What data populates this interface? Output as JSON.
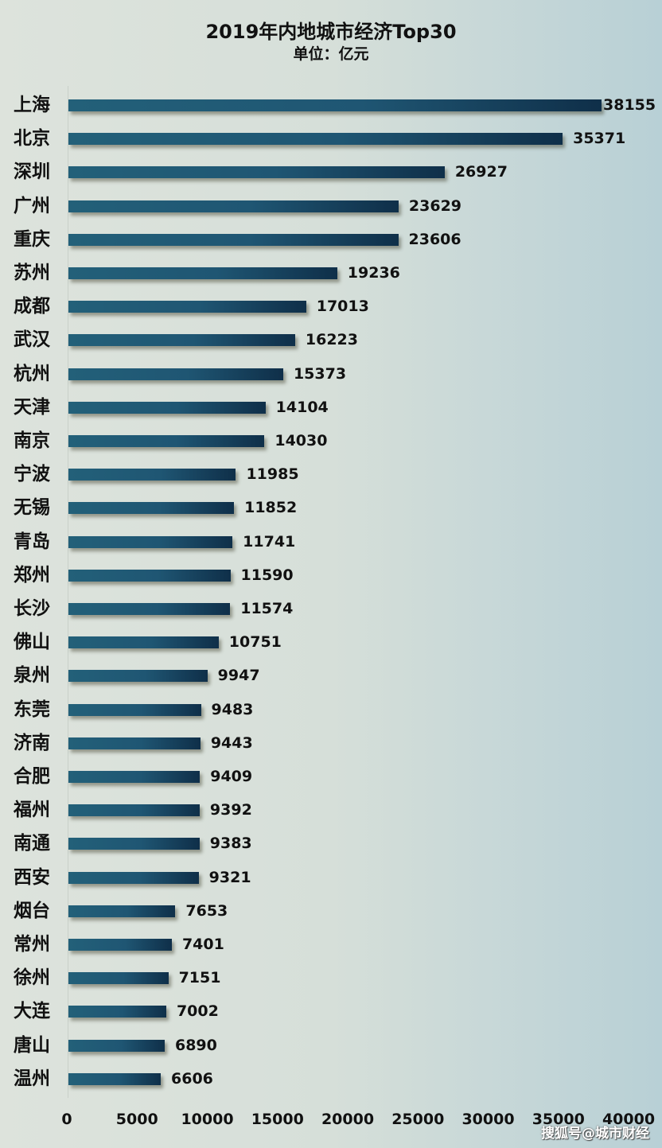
{
  "chart_data": {
    "type": "bar",
    "orientation": "horizontal",
    "title": "2019年内地城市经济Top30",
    "subtitle": "单位：亿元",
    "xlabel": "",
    "ylabel": "",
    "xlim": [
      0,
      40000
    ],
    "x_ticks": [
      "0",
      "5000",
      "10000",
      "15000",
      "20000",
      "25000",
      "30000",
      "35000",
      "40000"
    ],
    "grid": false,
    "legend": null,
    "data_labels": true,
    "categories": [
      "上海",
      "北京",
      "深圳",
      "广州",
      "重庆",
      "苏州",
      "成都",
      "武汉",
      "杭州",
      "天津",
      "南京",
      "宁波",
      "无锡",
      "青岛",
      "郑州",
      "长沙",
      "佛山",
      "泉州",
      "东莞",
      "济南",
      "合肥",
      "福州",
      "南通",
      "西安",
      "烟台",
      "常州",
      "徐州",
      "大连",
      "唐山",
      "温州"
    ],
    "values": [
      38155,
      35371,
      26927,
      23629,
      23606,
      19236,
      17013,
      16223,
      15373,
      14104,
      14030,
      11985,
      11852,
      11741,
      11590,
      11574,
      10751,
      9947,
      9483,
      9443,
      9409,
      9392,
      9383,
      9321,
      7653,
      7401,
      7151,
      7002,
      6890,
      6606
    ],
    "bar_color_start": "#236079",
    "bar_color_end": "#0f2f49"
  },
  "watermark": "搜狐号@城市财经"
}
